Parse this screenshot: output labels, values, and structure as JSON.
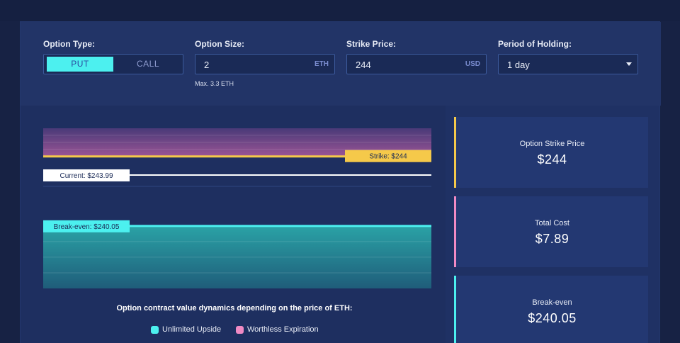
{
  "colors": {
    "accent_cyan": "#4cf0ef",
    "accent_yellow": "#f5c94a",
    "accent_pink": "#f08ac4",
    "background": "#172244",
    "panel": "#1f3164"
  },
  "controls": {
    "option_type": {
      "label": "Option Type:",
      "options": [
        "PUT",
        "CALL"
      ],
      "selected": "PUT"
    },
    "option_size": {
      "label": "Option Size:",
      "value": "2",
      "unit": "ETH",
      "hint": "Max. 3.3 ETH"
    },
    "strike_price": {
      "label": "Strike Price:",
      "value": "244",
      "unit": "USD"
    },
    "period": {
      "label": "Period of Holding:",
      "value": "1 day",
      "icon": "chevron-down-icon"
    }
  },
  "chart": {
    "strike_label": "Strike: $244",
    "current_label": "Current: $243.99",
    "breakeven_label": "Break-even: $240.05",
    "title": "Option contract value dynamics depending on the price of ETH:",
    "legend": [
      {
        "label": "Unlimited Upside",
        "color": "#4cf0ef"
      },
      {
        "label": "Worthless Expiration",
        "color": "#f08ac4"
      }
    ]
  },
  "chart_data": {
    "type": "area",
    "title": "Option contract value dynamics depending on the price of ETH:",
    "ylabel": "",
    "series": [
      {
        "name": "Worthless Expiration",
        "from": 244,
        "to": 245.6,
        "color": "#f08ac4"
      },
      {
        "name": "Unlimited Upside",
        "from": 236.5,
        "to": 240.05,
        "color": "#4cf0ef"
      }
    ],
    "levels": [
      {
        "label": "Strike: $244",
        "value": 244
      },
      {
        "label": "Current: $243.99",
        "value": 243.99
      },
      {
        "label": "Break-even: $240.05",
        "value": 240.05
      }
    ],
    "ylim": [
      236.5,
      245.6
    ],
    "grid": true,
    "legend_position": "bottom"
  },
  "cards": [
    {
      "label": "Option Strike Price",
      "value": "$244",
      "color": "#f5c94a"
    },
    {
      "label": "Total Cost",
      "value": "$7.89",
      "color": "#f08ac4"
    },
    {
      "label": "Break-even",
      "value": "$240.05",
      "color": "#4cf0ef"
    }
  ]
}
